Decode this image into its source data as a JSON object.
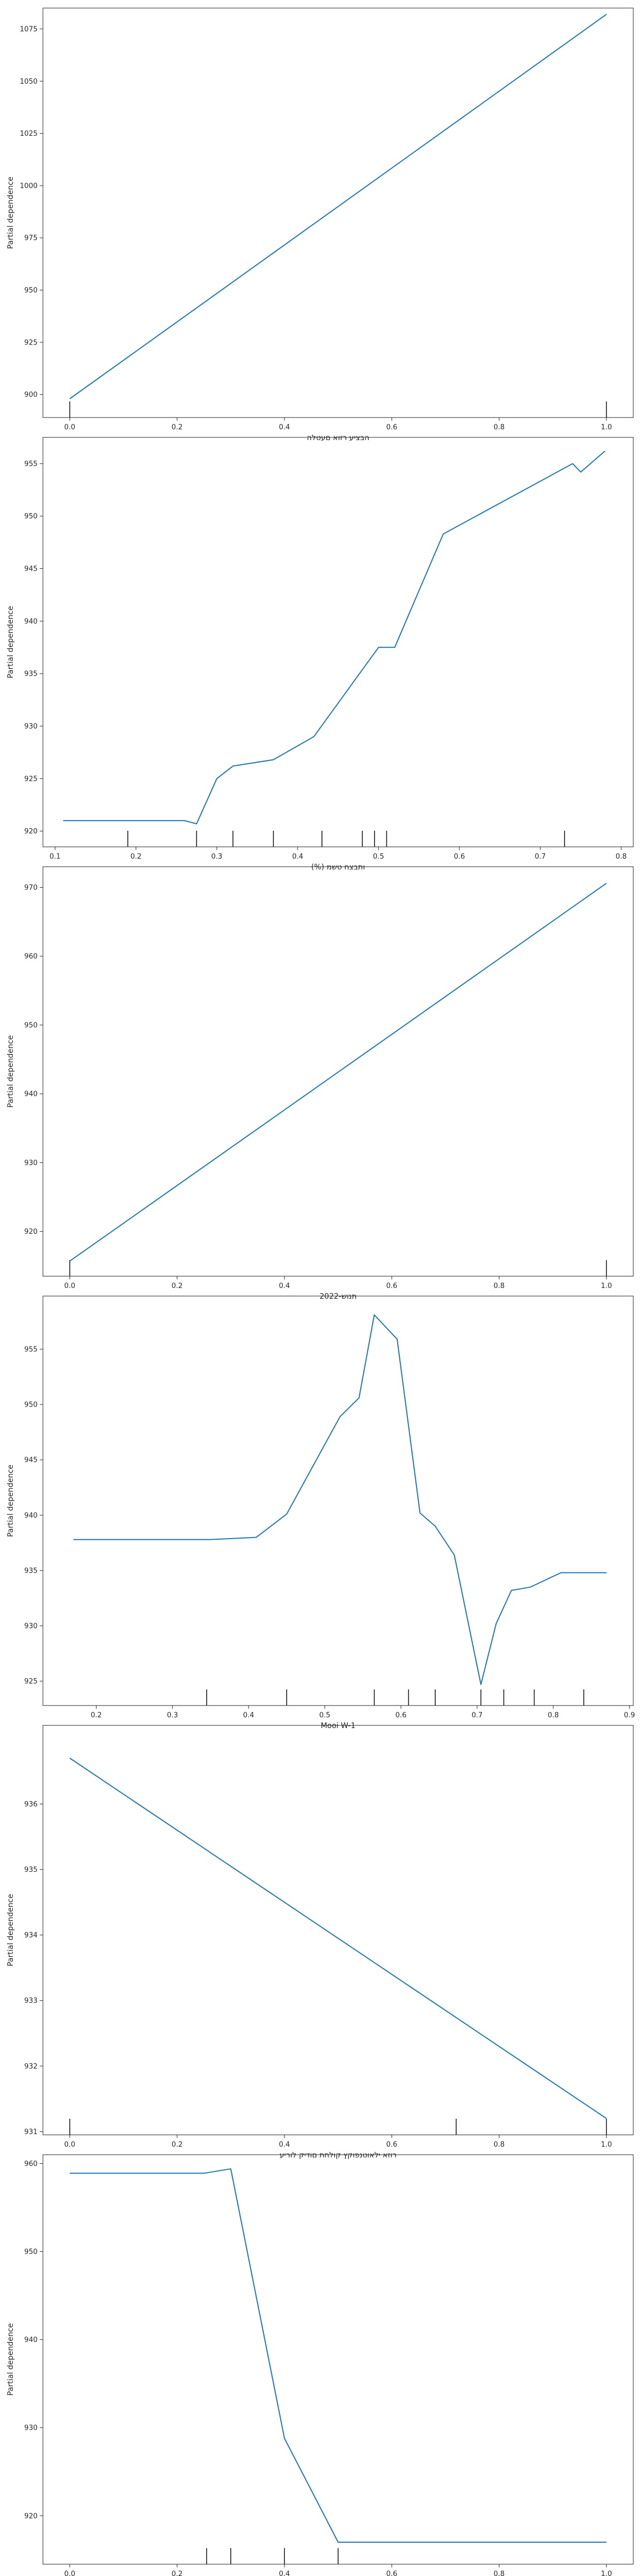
{
  "colors": {
    "line": "#1f77b4",
    "rug": "#1a1a1a",
    "axis": "#262626"
  },
  "chart_data": [
    {
      "type": "line",
      "xlabel": "הבציע רזוא םעטלה",
      "ylabel": "Partial dependence",
      "xlim": [
        -0.05,
        1.05
      ],
      "ylim": [
        889,
        1085
      ],
      "xticks": [
        0.0,
        0.2,
        0.4,
        0.6,
        0.8,
        1.0
      ],
      "yticks": [
        900,
        925,
        950,
        975,
        1000,
        1025,
        1050,
        1075
      ],
      "series": [
        {
          "x": [
            0.0,
            1.0
          ],
          "y": [
            898,
            1082
          ]
        }
      ],
      "rug": [
        0.0,
        1.0
      ],
      "grid": false
    },
    {
      "type": "line",
      "xlabel": "(%) ותבצח טשמ",
      "ylabel": "Partial dependence",
      "xlim": [
        0.085,
        0.815
      ],
      "ylim": [
        918.5,
        957.5
      ],
      "xticks": [
        0.1,
        0.2,
        0.3,
        0.4,
        0.5,
        0.6,
        0.7,
        0.8
      ],
      "yticks": [
        920,
        925,
        930,
        935,
        940,
        945,
        950,
        955
      ],
      "series": [
        {
          "x": [
            0.11,
            0.19,
            0.26,
            0.275,
            0.3,
            0.32,
            0.37,
            0.42,
            0.5,
            0.52,
            0.58,
            0.74,
            0.75,
            0.78
          ],
          "y": [
            921,
            921,
            921,
            920.7,
            925,
            926.2,
            926.8,
            929,
            937.5,
            937.5,
            948.3,
            955,
            954.2,
            956.2
          ]
        }
      ],
      "rug": [
        0.19,
        0.275,
        0.32,
        0.37,
        0.43,
        0.48,
        0.495,
        0.51,
        0.73
      ],
      "grid": false
    },
    {
      "type": "line",
      "xlabel": "תנוש-2022",
      "ylabel": "Partial dependence",
      "xlim": [
        -0.05,
        1.05
      ],
      "ylim": [
        913.5,
        973
      ],
      "xticks": [
        0.0,
        0.2,
        0.4,
        0.6,
        0.8,
        1.0
      ],
      "yticks": [
        920,
        930,
        940,
        950,
        960,
        970
      ],
      "series": [
        {
          "x": [
            0.0,
            1.0
          ],
          "y": [
            915.7,
            970.6
          ]
        }
      ],
      "rug": [
        0.0,
        1.0
      ],
      "grid": false
    },
    {
      "type": "line",
      "xlabel": "Mooi W-1",
      "ylabel": "Partial dependence",
      "xlim": [
        0.13,
        0.905
      ],
      "ylim": [
        922.8,
        959.8
      ],
      "xticks": [
        0.2,
        0.3,
        0.4,
        0.5,
        0.6,
        0.7,
        0.8,
        0.9
      ],
      "yticks": [
        925,
        930,
        935,
        940,
        945,
        950,
        955
      ],
      "series": [
        {
          "x": [
            0.17,
            0.35,
            0.41,
            0.45,
            0.52,
            0.545,
            0.565,
            0.595,
            0.625,
            0.645,
            0.67,
            0.705,
            0.725,
            0.745,
            0.77,
            0.81,
            0.87
          ],
          "y": [
            937.8,
            937.8,
            938,
            940.1,
            948.9,
            950.6,
            958.1,
            955.9,
            940.2,
            939,
            936.4,
            924.7,
            930.2,
            933.2,
            933.5,
            934.8,
            934.8
          ]
        }
      ],
      "rug": [
        0.345,
        0.45,
        0.565,
        0.61,
        0.645,
        0.705,
        0.735,
        0.775,
        0.84
      ],
      "grid": false
    },
    {
      "type": "line",
      "xlabel": "רוזא ילאוטנפוקץ קולחת םודיק לוריע",
      "ylabel": "Partial dependence",
      "xlim": [
        -0.05,
        1.05
      ],
      "ylim": [
        930.95,
        937.2
      ],
      "xticks": [
        0.0,
        0.2,
        0.4,
        0.6,
        0.8,
        1.0
      ],
      "yticks": [
        931,
        932,
        933,
        934,
        935,
        936
      ],
      "series": [
        {
          "x": [
            0.0,
            1.0
          ],
          "y": [
            936.7,
            931.2
          ]
        }
      ],
      "rug": [
        0.0,
        0.72,
        1.0
      ],
      "grid": false
    },
    {
      "type": "line",
      "xlabel": "(%) ץבוקב תונבה רפסמ",
      "ylabel": "Partial dependence",
      "xlim": [
        -0.05,
        1.05
      ],
      "ylim": [
        914.5,
        961
      ],
      "xticks": [
        0.0,
        0.2,
        0.4,
        0.6,
        0.8,
        1.0
      ],
      "yticks": [
        920,
        930,
        940,
        950,
        960
      ],
      "series": [
        {
          "x": [
            0.0,
            0.25,
            0.3,
            0.4,
            0.5,
            1.0
          ],
          "y": [
            958.9,
            958.9,
            959.4,
            928.8,
            917,
            917
          ]
        }
      ],
      "rug": [
        0.255,
        0.3,
        0.4,
        0.5
      ],
      "grid": false
    }
  ]
}
